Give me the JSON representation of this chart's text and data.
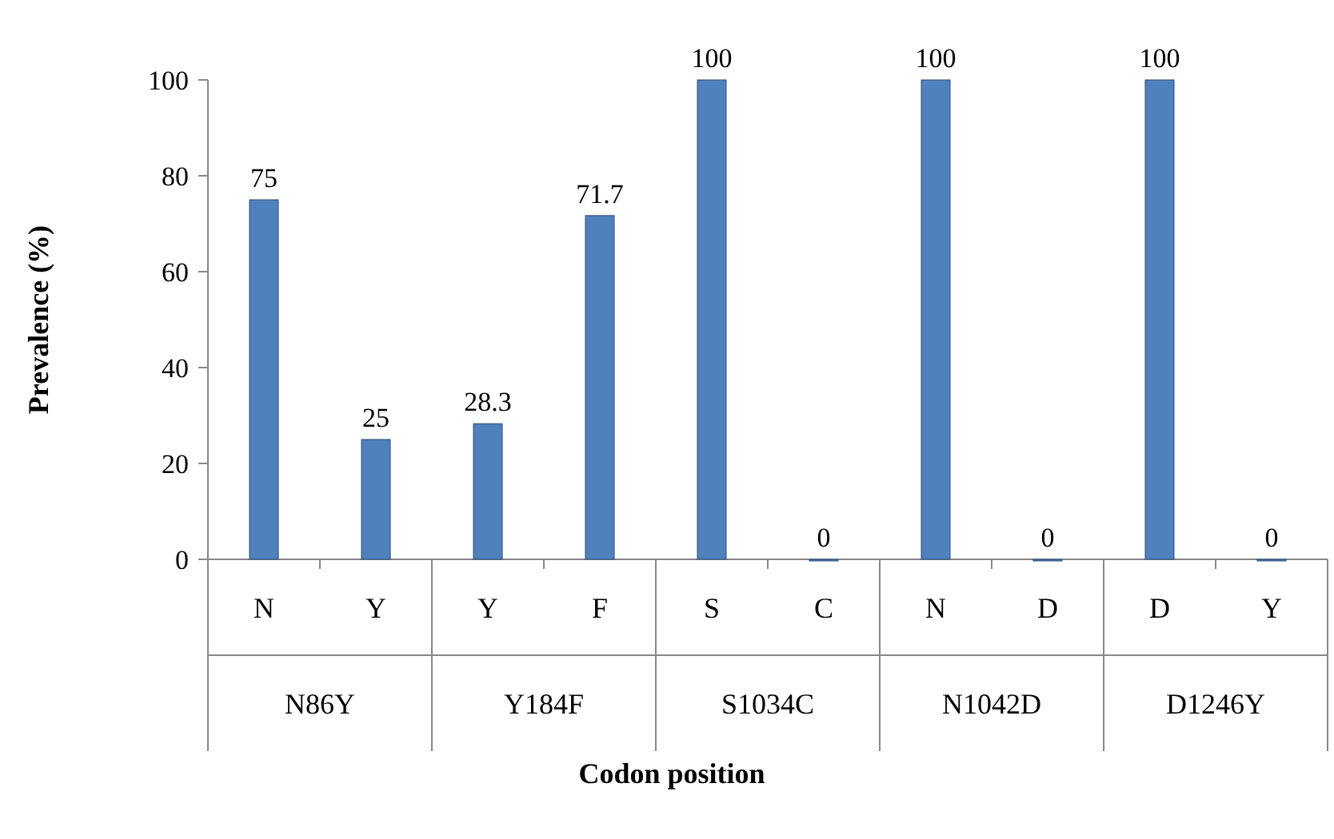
{
  "chart_data": {
    "type": "bar",
    "xlabel": "Codon position",
    "ylabel": "Prevalence (%)",
    "categories": [
      "N",
      "Y",
      "Y",
      "F",
      "S",
      "C",
      "N",
      "D",
      "D",
      "Y"
    ],
    "values": [
      75,
      25,
      28.3,
      71.7,
      100,
      0,
      100,
      0,
      100,
      0
    ],
    "color": "#4f81bd",
    "ylim": [
      0,
      100
    ],
    "yticks": [
      0,
      20,
      40,
      60,
      80,
      100
    ],
    "data_labels": true,
    "annotations": [
      "N86Y",
      "Y184F",
      "S1034C",
      "N1042D",
      "D1246Y"
    ]
  }
}
